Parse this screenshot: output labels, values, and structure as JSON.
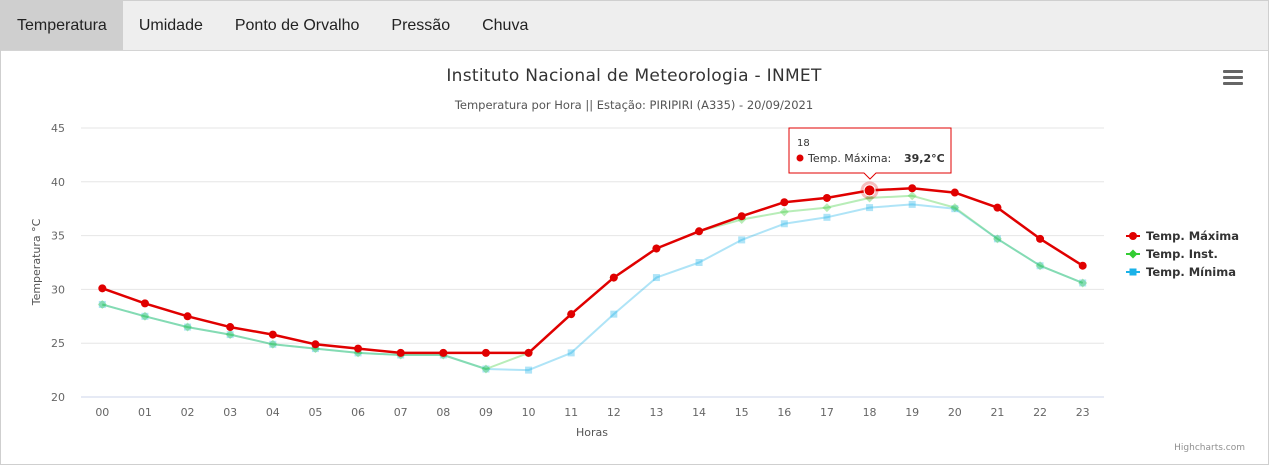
{
  "tabs": [
    {
      "label": "Temperatura",
      "active": true
    },
    {
      "label": "Umidade",
      "active": false
    },
    {
      "label": "Ponto de Orvalho",
      "active": false
    },
    {
      "label": "Pressão",
      "active": false
    },
    {
      "label": "Chuva",
      "active": false
    }
  ],
  "menu_icon": "hamburger-menu-icon",
  "credits": "Highcharts.com",
  "chart_data": {
    "type": "line",
    "title": "Instituto Nacional de Meteorologia - INMET",
    "subtitle": "Temperatura por Hora || Estação: PIRIPIRI (A335) - 20/09/2021",
    "xlabel": "Horas",
    "ylabel": "Temperatura °C",
    "ylim": [
      20,
      45
    ],
    "yticks": [
      20,
      25,
      30,
      35,
      40,
      45
    ],
    "grid": true,
    "legend_position": "right",
    "categories": [
      "00",
      "01",
      "02",
      "03",
      "04",
      "05",
      "06",
      "07",
      "08",
      "09",
      "10",
      "11",
      "12",
      "13",
      "14",
      "15",
      "16",
      "17",
      "18",
      "19",
      "20",
      "21",
      "22",
      "23"
    ],
    "series": [
      {
        "name": "Temp. Máxima",
        "color": "#e00000",
        "marker": "circle",
        "values": [
          30.1,
          28.7,
          27.5,
          26.5,
          25.8,
          24.9,
          24.5,
          24.1,
          24.1,
          24.1,
          24.1,
          27.7,
          31.1,
          33.8,
          35.4,
          36.8,
          38.1,
          38.5,
          39.2,
          39.4,
          39.0,
          37.6,
          34.7,
          32.2
        ]
      },
      {
        "name": "Temp. Inst.",
        "color": "#33cc33",
        "marker": "diamond",
        "values": [
          28.6,
          27.5,
          26.5,
          25.8,
          24.9,
          24.5,
          24.1,
          23.9,
          23.9,
          22.6,
          24.1,
          27.7,
          31.1,
          33.8,
          35.4,
          36.5,
          37.2,
          37.6,
          38.5,
          38.7,
          37.6,
          34.7,
          32.2,
          30.6
        ]
      },
      {
        "name": "Temp. Mínima",
        "color": "#1ab2e8",
        "marker": "square",
        "values": [
          28.6,
          27.5,
          26.5,
          25.8,
          24.9,
          24.5,
          24.1,
          23.9,
          23.9,
          22.6,
          22.5,
          24.1,
          27.7,
          31.1,
          32.5,
          34.6,
          36.1,
          36.7,
          37.6,
          37.9,
          37.5,
          34.7,
          32.2,
          30.6
        ]
      }
    ],
    "tooltip": {
      "category": "18",
      "series": "Temp. Máxima",
      "label": "Temp. Máxima:",
      "value": "39,2°C"
    }
  }
}
